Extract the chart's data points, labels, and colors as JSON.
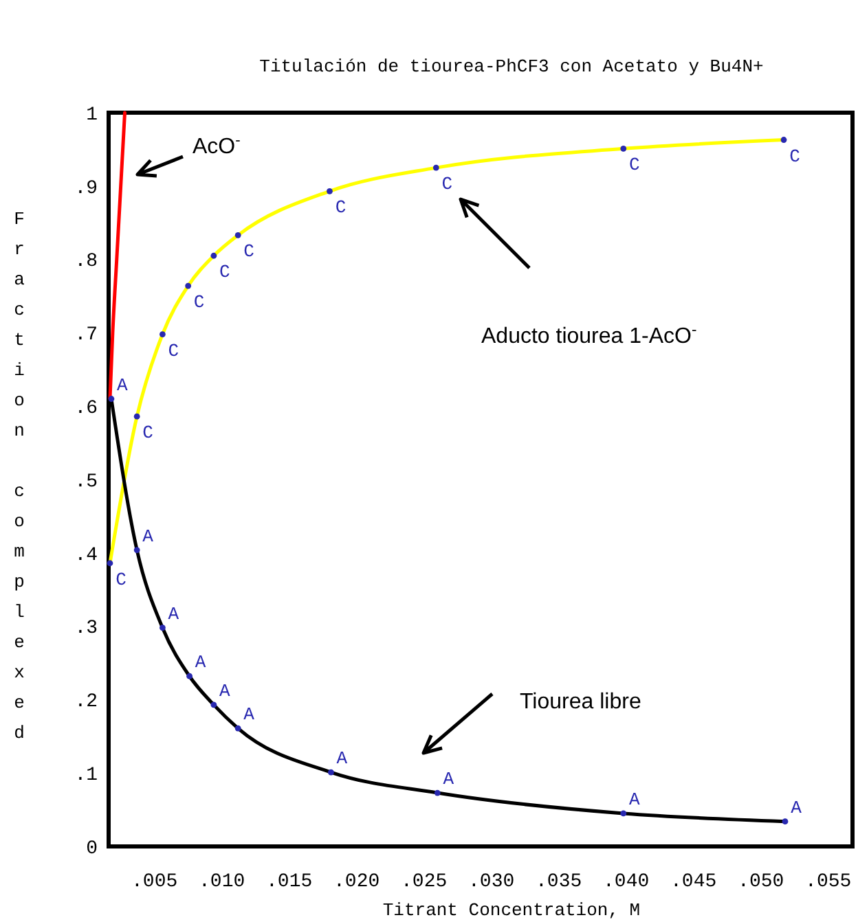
{
  "chart_data": {
    "type": "line",
    "title": "Titulación de tiourea-PhCF3 con Acetato y Bu4N+",
    "xlabel": "Titrant Concentration, M",
    "ylabel": "Fraction complexed",
    "xlim": [
      0.0016,
      0.0568
    ],
    "ylim": [
      0,
      1
    ],
    "xticks": [
      {
        "value": 0.005,
        "label": ".005"
      },
      {
        "value": 0.01,
        "label": ".010"
      },
      {
        "value": 0.015,
        "label": ".015"
      },
      {
        "value": 0.02,
        "label": ".020"
      },
      {
        "value": 0.025,
        "label": ".025"
      },
      {
        "value": 0.03,
        "label": ".030"
      },
      {
        "value": 0.035,
        "label": ".035"
      },
      {
        "value": 0.04,
        "label": ".040"
      },
      {
        "value": 0.045,
        "label": ".045"
      },
      {
        "value": 0.05,
        "label": ".050"
      },
      {
        "value": 0.055,
        "label": ".055"
      }
    ],
    "yticks": [
      0,
      {
        "value": 0.1,
        "label": ".1"
      },
      {
        "value": 0.2,
        "label": ".2"
      },
      {
        "value": 0.3,
        "label": ".3"
      },
      {
        "value": 0.4,
        "label": ".4"
      },
      {
        "value": 0.5,
        "label": ".5"
      },
      {
        "value": 0.6,
        "label": ".6"
      },
      {
        "value": 0.7,
        "label": ".7"
      },
      {
        "value": 0.8,
        "label": ".8"
      },
      {
        "value": 0.9,
        "label": ".9"
      },
      1
    ],
    "grid": false,
    "legend": false,
    "line_style": "solid",
    "series": [
      {
        "color": "#ff0000",
        "x": [
          0.0017,
          0.0019,
          0.0022,
          0.0025,
          0.0028
        ],
        "values": [
          0.61,
          0.7,
          0.8,
          0.9,
          1.0
        ]
      },
      {
        "color": "#ffff00",
        "x": [
          0.0017,
          0.0037,
          0.0056,
          0.0075,
          0.0094,
          0.0112,
          0.018,
          0.0259,
          0.0398,
          0.0517
        ],
        "values": [
          0.386,
          0.586,
          0.698,
          0.764,
          0.805,
          0.833,
          0.893,
          0.925,
          0.951,
          0.963
        ]
      },
      {
        "color": "#000000",
        "x": [
          0.0018,
          0.0037,
          0.0056,
          0.0076,
          0.0094,
          0.0112,
          0.0181,
          0.026,
          0.0398,
          0.0518
        ],
        "values": [
          0.61,
          0.404,
          0.298,
          0.232,
          0.193,
          0.161,
          0.101,
          0.073,
          0.045,
          0.034
        ]
      },
      {
        "type": "scatter",
        "name": "C",
        "color": "#2828b0",
        "x": [
          0.0017,
          0.0037,
          0.0056,
          0.0075,
          0.0094,
          0.0112,
          0.018,
          0.0259,
          0.0398,
          0.0517
        ],
        "values": [
          0.386,
          0.586,
          0.698,
          0.764,
          0.805,
          0.833,
          0.893,
          0.925,
          0.951,
          0.963
        ]
      },
      {
        "type": "scatter",
        "name": "A",
        "color": "#2828b0",
        "x": [
          0.0018,
          0.0037,
          0.0056,
          0.0076,
          0.0094,
          0.0112,
          0.0181,
          0.026,
          0.0398,
          0.0518
        ],
        "values": [
          0.61,
          0.404,
          0.298,
          0.232,
          0.193,
          0.161,
          0.101,
          0.073,
          0.045,
          0.034
        ]
      }
    ],
    "annotations": [
      "AcO$^{-}$",
      "Aducto tiourea 1-AcO$^{-}$",
      "Tiourea libre"
    ]
  }
}
